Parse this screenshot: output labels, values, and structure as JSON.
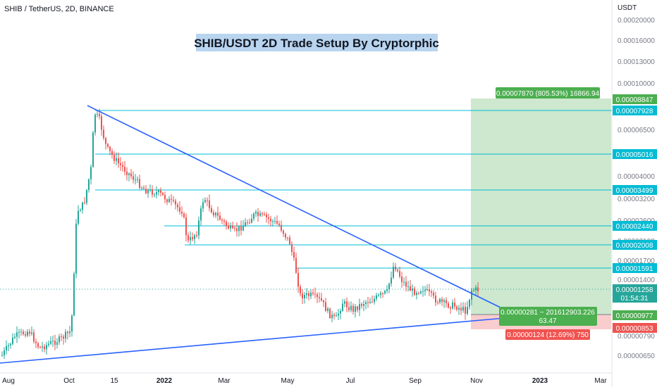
{
  "header": {
    "symbol_line": "SHIB / TetherUS, 2D, BINANCE"
  },
  "chart_data": {
    "type": "candlestick",
    "title": "SHIB/USDT 2D Trade Setup By Cryptorphic",
    "currency_label": "USDT",
    "y_scale": "log",
    "ylim": [
      5.9e-06,
      2.05e-05
    ],
    "yticks": [
      "0.00020000",
      "0.00016000",
      "0.00013000",
      "0.00010000",
      "0.00006500",
      "0.00004000",
      "0.00003200",
      "0.00002600",
      "0.00002100",
      "0.00001700",
      "0.00001400",
      "0.00000790",
      "0.00000650"
    ],
    "x_labels": [
      "Aug",
      "Oct",
      "15",
      "2022",
      "Mar",
      "May",
      "Jul",
      "Sep",
      "Nov",
      "2023",
      "Mar"
    ],
    "horizontal_levels": [
      {
        "label": "0.00007928",
        "color": "#00bcd4"
      },
      {
        "label": "0.00005016",
        "color": "#00bcd4"
      },
      {
        "label": "0.00003499",
        "color": "#00bcd4"
      },
      {
        "label": "0.00002440",
        "color": "#00bcd4"
      },
      {
        "label": "0.00002008",
        "color": "#00bcd4"
      },
      {
        "label": "0.00001591",
        "color": "#00bcd4"
      }
    ],
    "price_badges": [
      {
        "label": "0.00008847",
        "color": "#4caf50"
      },
      {
        "label": "0.00001258",
        "sublabel": "01:54:31",
        "color": "#26a69a"
      },
      {
        "label": "0.00000977",
        "color": "#4caf50"
      },
      {
        "label": "0.00000853",
        "color": "#ef5350"
      }
    ],
    "position_tool": {
      "target_label": "0.00007870 (805.53%) 16866.94",
      "entry_label_line1": "0.00000281 ~ 201612903.226",
      "entry_label_line2": "63.47",
      "stop_label": "0.00000124 (12.69%) 750",
      "profit_color": "#c8e6c9",
      "loss_color": "#f8c8c8"
    },
    "trendlines": [
      {
        "name": "descending resistance",
        "color": "#2962ff"
      },
      {
        "name": "ascending support",
        "color": "#2962ff"
      }
    ],
    "candle_colors": {
      "up": "#26a69a",
      "down": "#ef5350"
    }
  }
}
